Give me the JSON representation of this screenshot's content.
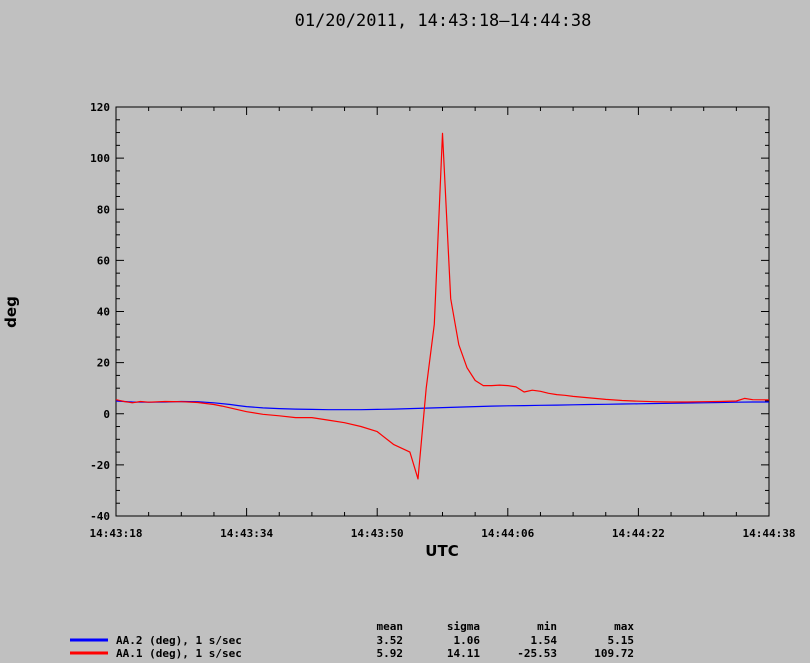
{
  "chart_data": {
    "type": "line",
    "title": "01/20/2011, 14:43:18–14:44:38",
    "xlabel": "UTC",
    "ylabel": "deg",
    "x_tick_labels": [
      "14:43:18",
      "14:43:34",
      "14:43:50",
      "14:44:06",
      "14:44:22",
      "14:44:38"
    ],
    "xlim_seconds": [
      0,
      80
    ],
    "ylim": [
      -40,
      120
    ],
    "y_ticks": [
      -40,
      -20,
      0,
      20,
      40,
      60,
      80,
      100,
      120
    ],
    "grid": false,
    "legend_position": "bottom-left",
    "stats_headers": [
      "mean",
      "sigma",
      "min",
      "max"
    ],
    "series": [
      {
        "name": "AA.2 (deg), 1 s/sec",
        "color": "#0000ff",
        "stats": [
          "3.52",
          "1.06",
          "1.54",
          "5.15"
        ],
        "x": [
          0,
          1,
          2,
          4,
          6,
          8,
          10,
          12,
          14,
          15,
          16,
          18,
          20,
          22,
          24,
          26,
          28,
          30,
          32,
          34,
          36,
          38,
          40,
          42,
          44,
          46,
          48,
          50,
          52,
          54,
          56,
          58,
          60,
          62,
          64,
          66,
          68,
          70,
          72,
          74,
          76,
          78,
          80
        ],
        "y": [
          5.0,
          4.8,
          4.6,
          4.5,
          4.6,
          4.8,
          4.7,
          4.3,
          3.6,
          3.2,
          2.8,
          2.3,
          2.0,
          1.8,
          1.7,
          1.6,
          1.6,
          1.6,
          1.7,
          1.8,
          2.0,
          2.2,
          2.4,
          2.6,
          2.8,
          3.0,
          3.1,
          3.2,
          3.3,
          3.4,
          3.5,
          3.6,
          3.7,
          3.8,
          3.9,
          4.0,
          4.1,
          4.2,
          4.3,
          4.4,
          4.5,
          4.6,
          4.6
        ]
      },
      {
        "name": "AA.1 (deg), 1 s/sec",
        "color": "#ff0000",
        "stats": [
          "5.92",
          "14.11",
          "-25.53",
          "109.72"
        ],
        "x": [
          0,
          1,
          2,
          3,
          4,
          6,
          8,
          10,
          12,
          13,
          14,
          16,
          18,
          20,
          22,
          24,
          26,
          28,
          30,
          32,
          34,
          36,
          37,
          38,
          39,
          40,
          41,
          42,
          43,
          44,
          45,
          46,
          47,
          48,
          49,
          50,
          51,
          52,
          53,
          54,
          55,
          56,
          58,
          60,
          62,
          64,
          66,
          68,
          70,
          72,
          74,
          76,
          77,
          78,
          80
        ],
        "y": [
          5.5,
          4.8,
          4.3,
          4.8,
          4.5,
          4.8,
          4.7,
          4.4,
          3.6,
          3.0,
          2.3,
          0.8,
          -0.2,
          -0.8,
          -1.5,
          -1.5,
          -2.5,
          -3.5,
          -5.0,
          -7.0,
          -12.0,
          -15.0,
          -25.5,
          10.0,
          35.0,
          109.7,
          45.0,
          27.0,
          18.0,
          13.0,
          11.0,
          11.0,
          11.2,
          11.0,
          10.5,
          8.5,
          9.2,
          8.8,
          8.0,
          7.5,
          7.2,
          6.8,
          6.2,
          5.6,
          5.2,
          4.9,
          4.7,
          4.6,
          4.6,
          4.7,
          4.8,
          5.0,
          6.0,
          5.5,
          5.4
        ]
      }
    ]
  }
}
